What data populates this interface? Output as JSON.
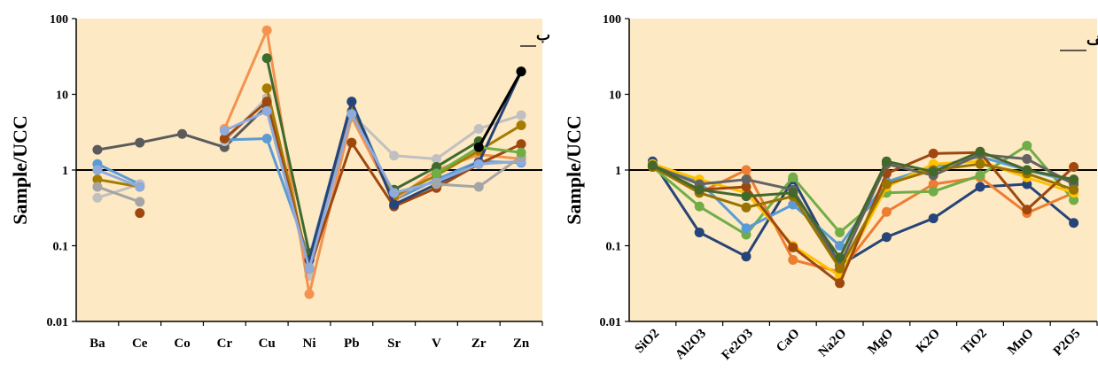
{
  "chart_data": [
    {
      "type": "line",
      "panel_label": "ب",
      "ylabel": "Sample/UCC",
      "yscale": "log",
      "ylim": [
        0.01,
        100
      ],
      "yticks": [
        "0.01",
        "0.1",
        "1",
        "10",
        "100"
      ],
      "reference_line": 1,
      "background": "#fde9c4",
      "categories": [
        "Ba",
        "Ce",
        "Co",
        "Cr",
        "Cu",
        "Ni",
        "Pb",
        "Sr",
        "V",
        "Zr",
        "Zn"
      ],
      "series": [
        {
          "color": "#5b5b5b",
          "values": [
            1.85,
            2.3,
            3.0,
            2.0,
            7.0,
            null,
            null,
            null,
            null,
            null,
            null
          ]
        },
        {
          "color": "#5b9bd5",
          "values": [
            1.2,
            0.65,
            null,
            2.5,
            2.6,
            0.07,
            8.0,
            0.4,
            0.75,
            1.3,
            1.25
          ]
        },
        {
          "color": "#c0c0c0",
          "values": [
            0.43,
            0.65,
            null,
            2.4,
            9.0,
            0.04,
            5.5,
            1.55,
            1.4,
            3.5,
            5.3
          ]
        },
        {
          "color": "#f4934f",
          "values": [
            null,
            null,
            null,
            3.5,
            70.0,
            0.023,
            5.0,
            0.4,
            1.0,
            1.6,
            1.4
          ]
        },
        {
          "color": "#3e6b2d",
          "values": [
            null,
            null,
            null,
            null,
            30.0,
            0.08,
            null,
            0.55,
            1.1,
            2.4,
            null
          ]
        },
        {
          "color": "#a67c00",
          "values": [
            0.75,
            0.6,
            null,
            null,
            12.0,
            0.05,
            6.0,
            0.45,
            0.85,
            1.8,
            3.9
          ]
        },
        {
          "color": "#9e480e",
          "values": [
            null,
            0.27,
            null,
            2.6,
            8.0,
            0.05,
            2.3,
            0.33,
            0.58,
            1.2,
            2.2
          ]
        },
        {
          "color": "#264478",
          "values": [
            null,
            null,
            null,
            null,
            null,
            0.065,
            8.0,
            0.35,
            0.65,
            1.25,
            20.0
          ]
        },
        {
          "color": "#8faadc",
          "values": [
            1.0,
            0.6,
            null,
            3.3,
            6.0,
            0.05,
            5.5,
            0.5,
            0.7,
            1.2,
            1.3
          ]
        },
        {
          "color": "#a5a5a5",
          "values": [
            0.6,
            0.38,
            null,
            null,
            null,
            null,
            null,
            null,
            0.65,
            0.6,
            1.5
          ]
        },
        {
          "color": "#70ad47",
          "values": [
            null,
            null,
            null,
            null,
            null,
            null,
            null,
            null,
            0.9,
            2.0,
            1.7
          ]
        },
        {
          "color": "#000000",
          "values": [
            null,
            null,
            null,
            null,
            null,
            null,
            null,
            null,
            null,
            2.0,
            20.0
          ]
        }
      ]
    },
    {
      "type": "line",
      "panel_label": "الف",
      "ylabel": "Sample/UCC",
      "yscale": "log",
      "ylim": [
        0.01,
        100
      ],
      "yticks": [
        "0.01",
        "0.1",
        "1",
        "10",
        "100"
      ],
      "reference_line": 1,
      "background": "#fde9c4",
      "categories": [
        "SiO2",
        "Al2O3",
        "Fe2O3",
        "CaO",
        "Na2O",
        "MgO",
        "K2O",
        "TiO2",
        "MnO",
        "P2O5"
      ],
      "series": [
        {
          "color": "#264478",
          "values": [
            1.3,
            0.15,
            0.072,
            0.75,
            0.055,
            0.13,
            0.23,
            0.6,
            0.65,
            0.2
          ]
        },
        {
          "color": "#ed7d31",
          "values": [
            1.15,
            0.5,
            1.0,
            0.065,
            0.045,
            0.28,
            0.65,
            0.8,
            0.27,
            0.5
          ]
        },
        {
          "color": "#70ad47",
          "values": [
            1.1,
            0.33,
            0.14,
            0.8,
            0.15,
            0.5,
            0.52,
            0.85,
            2.1,
            0.4
          ]
        },
        {
          "color": "#5b9bd5",
          "values": [
            1.2,
            0.7,
            0.17,
            0.35,
            0.1,
            0.7,
            1.1,
            1.5,
            1.0,
            0.7
          ]
        },
        {
          "color": "#ffc000",
          "values": [
            1.2,
            0.75,
            0.5,
            0.1,
            0.04,
            0.6,
            1.2,
            1.3,
            0.8,
            0.5
          ]
        },
        {
          "color": "#9e480e",
          "values": [
            1.1,
            0.55,
            0.6,
            0.095,
            0.032,
            0.9,
            1.65,
            1.7,
            0.3,
            1.1
          ]
        },
        {
          "color": "#636363",
          "values": [
            1.15,
            0.65,
            0.75,
            0.55,
            0.055,
            1.2,
            0.85,
            1.6,
            1.4,
            0.65
          ]
        },
        {
          "color": "#997300",
          "values": [
            1.1,
            0.5,
            0.32,
            0.45,
            0.05,
            0.65,
            1.0,
            1.2,
            0.9,
            0.55
          ]
        },
        {
          "color": "#43682b",
          "values": [
            1.15,
            0.55,
            0.45,
            0.5,
            0.07,
            1.3,
            0.95,
            1.75,
            1.0,
            0.75
          ]
        }
      ]
    }
  ]
}
